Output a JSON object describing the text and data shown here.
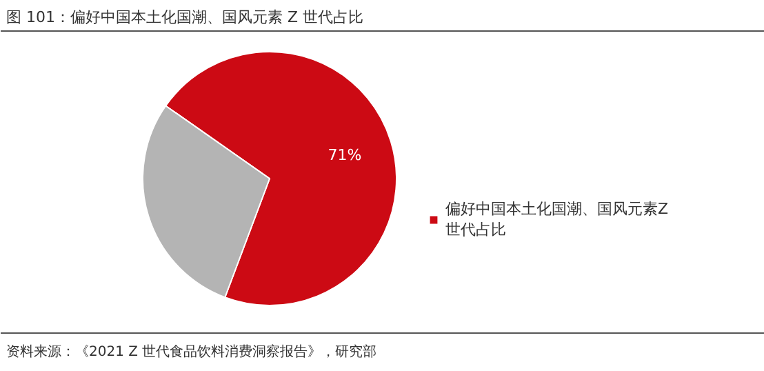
{
  "chart_data": {
    "type": "pie",
    "title": "图 101：偏好中国本土化国潮、国风元素 Z 世代占比",
    "categories": [
      "偏好中国本土化国潮、国风元素Z世代占比",
      null
    ],
    "values": [
      71,
      29
    ],
    "colors": [
      "#cc0a14",
      "#b4b4b4"
    ],
    "value_labels": [
      "71%",
      null
    ],
    "legend": "right",
    "annotations": [
      "资料来源：《2021 Z 世代食品饮料消费洞察报告》，研究部"
    ]
  }
}
